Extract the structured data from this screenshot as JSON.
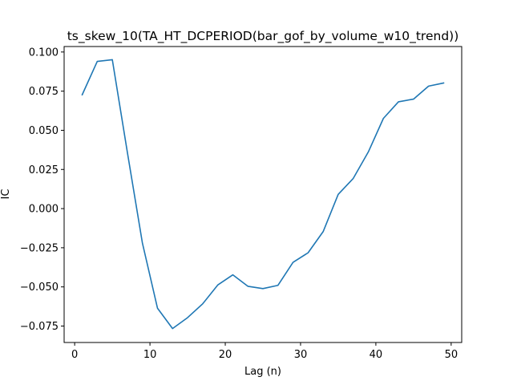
{
  "chart_data": {
    "type": "line",
    "title": "ts_skew_10(TA_HT_DCPERIOD(bar_gof_by_volume_w10_trend))",
    "xlabel": "Lag (n)",
    "ylabel": "IC",
    "xlim": [
      -1.4,
      51.4
    ],
    "ylim": [
      -0.0855,
      0.1035
    ],
    "xticks": [
      0,
      10,
      20,
      30,
      40,
      50
    ],
    "yticks": [
      -0.075,
      -0.05,
      -0.025,
      0.0,
      0.025,
      0.05,
      0.075,
      0.1
    ],
    "ytick_labels": [
      "−0.075",
      "−0.050",
      "−0.025",
      "0.000",
      "0.025",
      "0.050",
      "0.075",
      "0.100"
    ],
    "xtick_labels": [
      "0",
      "10",
      "20",
      "30",
      "40",
      "50"
    ],
    "grid": false,
    "color": "#1f77b4",
    "series": [
      {
        "x": [
          1,
          3,
          5,
          7,
          9,
          11,
          13,
          15,
          17,
          19,
          21,
          23,
          25,
          27,
          29,
          31,
          33,
          35,
          37,
          39,
          41,
          43,
          45,
          47,
          49
        ],
        "values": [
          0.0727,
          0.094,
          0.0951,
          0.0359,
          -0.0221,
          -0.0636,
          -0.0766,
          -0.0696,
          -0.0608,
          -0.0488,
          -0.0423,
          -0.0496,
          -0.0511,
          -0.049,
          -0.0343,
          -0.0282,
          -0.0147,
          0.0091,
          0.0193,
          0.0362,
          0.0576,
          0.0682,
          0.0699,
          0.0782,
          0.0802
        ]
      }
    ]
  }
}
